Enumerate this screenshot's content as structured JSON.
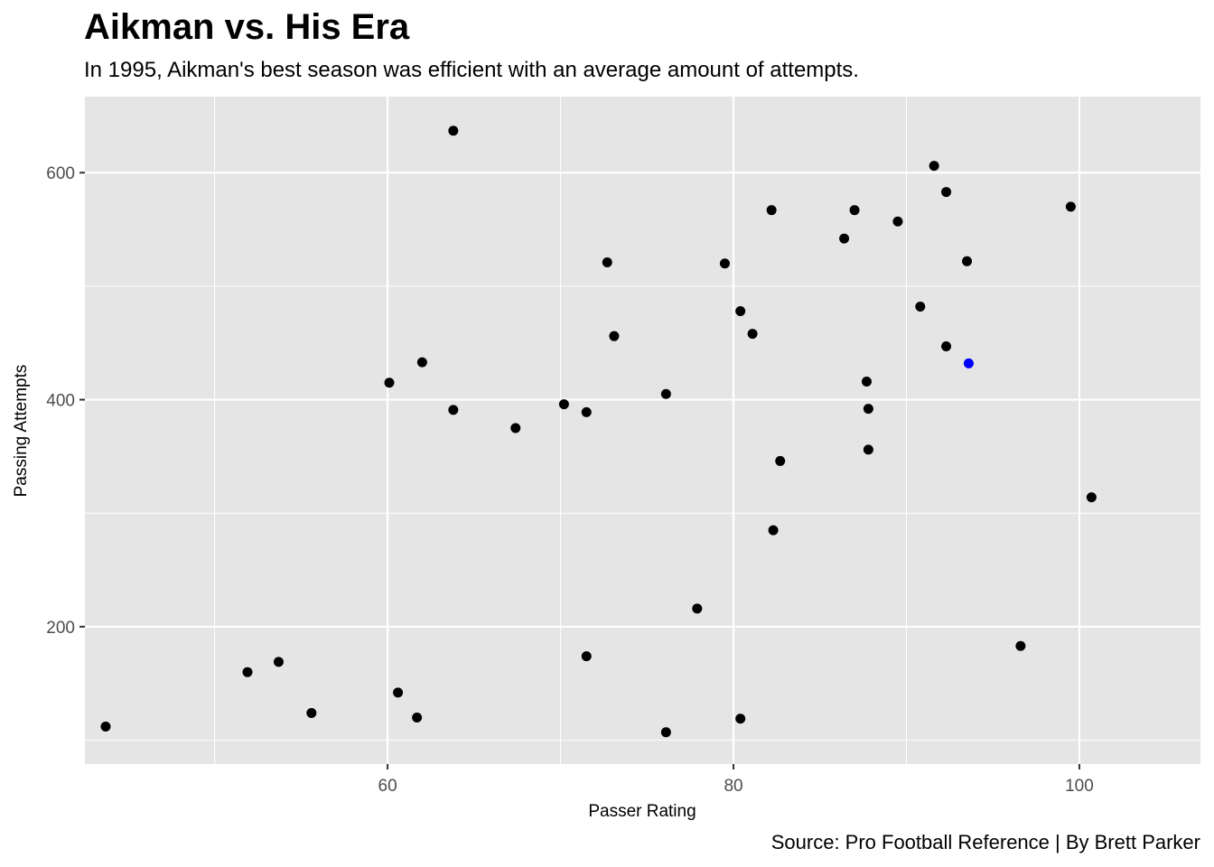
{
  "chart_data": {
    "type": "scatter",
    "title": "Aikman vs. His Era",
    "subtitle": "In 1995, Aikman's best season was efficient with an average amount of attempts.",
    "caption": "Source: Pro Football Reference | By Brett Parker",
    "xlabel": "Passer Rating",
    "ylabel": "Passing Attempts",
    "xlim": [
      42.5,
      107.0
    ],
    "ylim": [
      79,
      667
    ],
    "x_ticks": [
      60,
      80,
      100
    ],
    "y_ticks": [
      200,
      400,
      600
    ],
    "grid": true,
    "colors": {
      "panel": "#e5e5e5",
      "grid": "#ffffff",
      "point": "#000000",
      "highlight": "#0000ff"
    },
    "points": [
      {
        "x": 43.7,
        "y": 112
      },
      {
        "x": 51.9,
        "y": 160
      },
      {
        "x": 53.7,
        "y": 169
      },
      {
        "x": 55.6,
        "y": 124
      },
      {
        "x": 60.1,
        "y": 415
      },
      {
        "x": 60.6,
        "y": 142
      },
      {
        "x": 61.7,
        "y": 120
      },
      {
        "x": 62.0,
        "y": 433
      },
      {
        "x": 63.8,
        "y": 637
      },
      {
        "x": 63.8,
        "y": 391
      },
      {
        "x": 67.4,
        "y": 375
      },
      {
        "x": 70.2,
        "y": 396
      },
      {
        "x": 71.5,
        "y": 389
      },
      {
        "x": 71.5,
        "y": 174
      },
      {
        "x": 72.7,
        "y": 521
      },
      {
        "x": 73.1,
        "y": 456
      },
      {
        "x": 76.1,
        "y": 405
      },
      {
        "x": 76.1,
        "y": 107
      },
      {
        "x": 77.9,
        "y": 216
      },
      {
        "x": 79.5,
        "y": 520
      },
      {
        "x": 80.4,
        "y": 478
      },
      {
        "x": 80.4,
        "y": 119
      },
      {
        "x": 81.1,
        "y": 458
      },
      {
        "x": 82.2,
        "y": 567
      },
      {
        "x": 82.3,
        "y": 285
      },
      {
        "x": 82.7,
        "y": 346
      },
      {
        "x": 86.4,
        "y": 542
      },
      {
        "x": 87.0,
        "y": 567
      },
      {
        "x": 87.7,
        "y": 416
      },
      {
        "x": 87.8,
        "y": 392
      },
      {
        "x": 87.8,
        "y": 356
      },
      {
        "x": 89.5,
        "y": 557
      },
      {
        "x": 90.8,
        "y": 482
      },
      {
        "x": 91.6,
        "y": 606
      },
      {
        "x": 92.3,
        "y": 583
      },
      {
        "x": 92.3,
        "y": 447
      },
      {
        "x": 93.5,
        "y": 522
      },
      {
        "x": 93.6,
        "y": 432,
        "highlight": true
      },
      {
        "x": 96.6,
        "y": 183
      },
      {
        "x": 99.5,
        "y": 570
      },
      {
        "x": 100.7,
        "y": 314
      }
    ]
  }
}
